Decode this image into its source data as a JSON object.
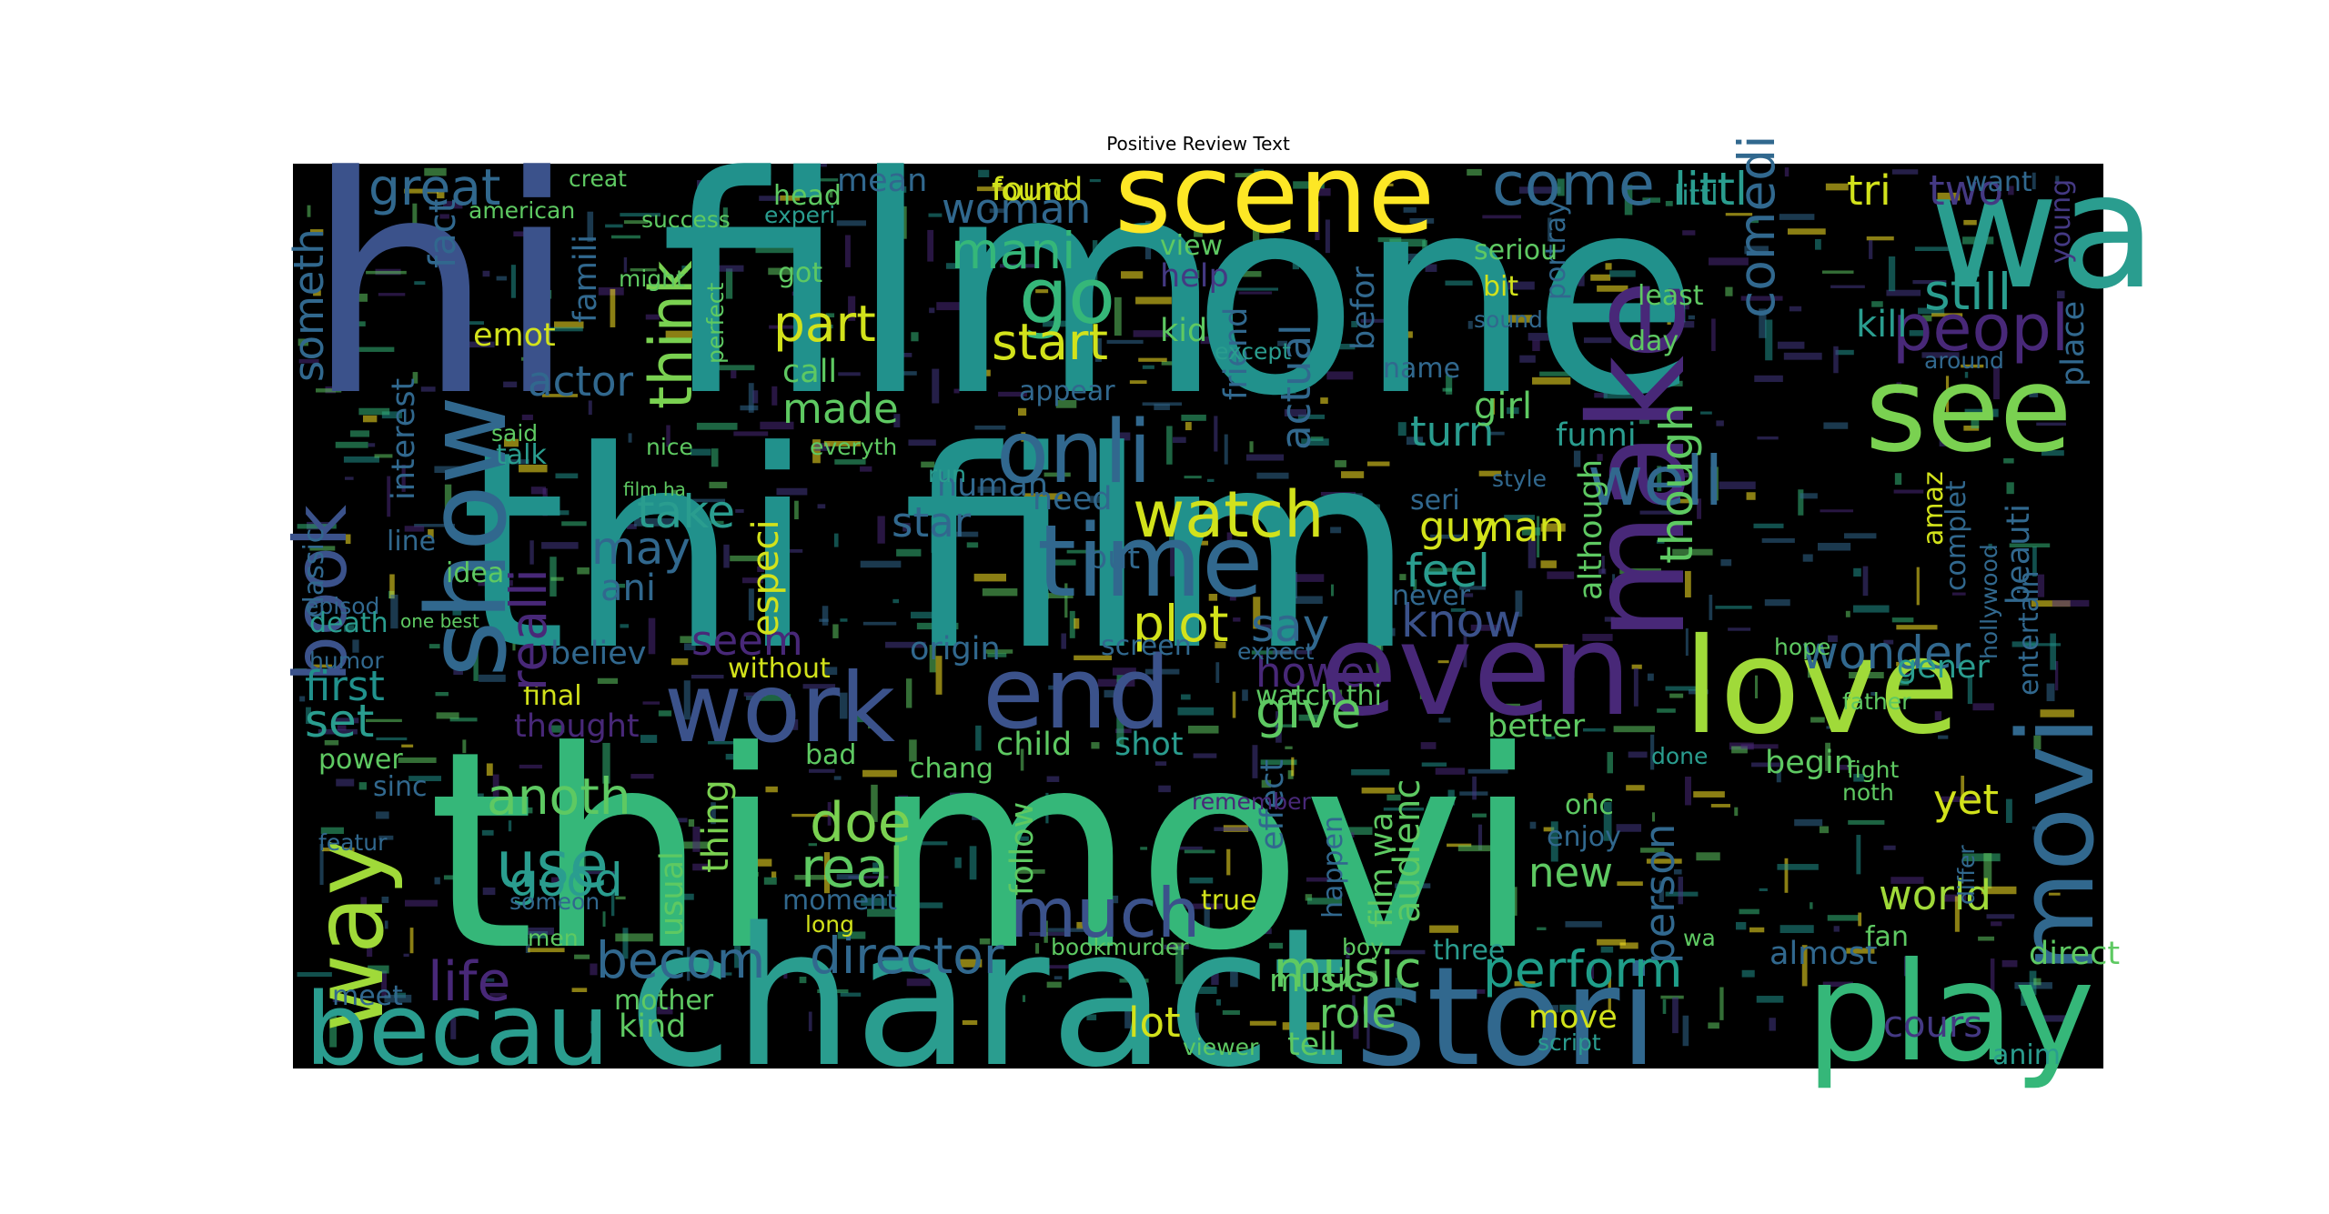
{
  "chart_data": {
    "type": "wordcloud",
    "title": "Positive Review Text",
    "background_color": "#000000",
    "colormap": "viridis",
    "words": [
      {
        "text": "thi film",
        "color": "#21918c"
      },
      {
        "text": "thi movi",
        "color": "#35b779"
      },
      {
        "text": "hi",
        "color": "#3b528b"
      },
      {
        "text": "film",
        "color": "#21918c"
      },
      {
        "text": "one",
        "color": "#21918c"
      },
      {
        "text": "charact",
        "color": "#2a9d8f"
      },
      {
        "text": "scene",
        "color": "#fde725"
      },
      {
        "text": "wa",
        "color": "#2a9d8f"
      },
      {
        "text": "see",
        "color": "#7ad151"
      },
      {
        "text": "even",
        "color": "#482878"
      },
      {
        "text": "love",
        "color": "#a0da39"
      },
      {
        "text": "play",
        "color": "#35b779"
      },
      {
        "text": "stori",
        "color": "#31688e"
      },
      {
        "text": "work",
        "color": "#3b528b"
      },
      {
        "text": "end",
        "color": "#3b528b"
      },
      {
        "text": "way",
        "color": "#a0da39"
      },
      {
        "text": "show",
        "color": "#31688e"
      },
      {
        "text": "becau",
        "color": "#2a9d8f"
      },
      {
        "text": "movi",
        "color": "#31688e"
      },
      {
        "text": "make",
        "color": "#482878"
      },
      {
        "text": "time",
        "color": "#31688e"
      },
      {
        "text": "watch",
        "color": "#d2e21b"
      },
      {
        "text": "onli",
        "color": "#31688e"
      },
      {
        "text": "peopl",
        "color": "#482878"
      },
      {
        "text": "come",
        "color": "#31688e"
      },
      {
        "text": "go",
        "color": "#35b779"
      },
      {
        "text": "great",
        "color": "#31688e"
      },
      {
        "text": "book",
        "color": "#3b528b"
      },
      {
        "text": "much",
        "color": "#3b528b"
      },
      {
        "text": "music",
        "color": "#5ec962"
      },
      {
        "text": "perform",
        "color": "#1f9e89"
      },
      {
        "text": "director",
        "color": "#31688e"
      },
      {
        "text": "becom",
        "color": "#31688e"
      },
      {
        "text": "anoth",
        "color": "#5ec962"
      },
      {
        "text": "use",
        "color": "#2a9d8f"
      },
      {
        "text": "good",
        "color": "#2a9d8f"
      },
      {
        "text": "real",
        "color": "#5ec962"
      },
      {
        "text": "doe",
        "color": "#7ad151"
      },
      {
        "text": "life",
        "color": "#482878"
      },
      {
        "text": "set",
        "color": "#2a9d8f"
      },
      {
        "text": "first",
        "color": "#21918c"
      },
      {
        "text": "give",
        "color": "#5ec962"
      },
      {
        "text": "know",
        "color": "#3b528b"
      },
      {
        "text": "feel",
        "color": "#2a9d8f"
      },
      {
        "text": "plot",
        "color": "#d2e21b"
      },
      {
        "text": "say",
        "color": "#31688e"
      },
      {
        "text": "take",
        "color": "#2a9d8f"
      },
      {
        "text": "may",
        "color": "#31688e"
      },
      {
        "text": "part",
        "color": "#d2e21b"
      },
      {
        "text": "start",
        "color": "#d2e21b"
      },
      {
        "text": "made",
        "color": "#5ec962"
      },
      {
        "text": "actor",
        "color": "#31688e"
      },
      {
        "text": "think",
        "color": "#7ad151"
      },
      {
        "text": "still",
        "color": "#2a9d8f"
      },
      {
        "text": "two",
        "color": "#443983"
      },
      {
        "text": "littl",
        "color": "#2a9d8f"
      },
      {
        "text": "tri",
        "color": "#d2e21b"
      },
      {
        "text": "woman",
        "color": "#31688e"
      },
      {
        "text": "found",
        "color": "#d2e21b"
      },
      {
        "text": "mean",
        "color": "#31688e"
      },
      {
        "text": "well",
        "color": "#31688e"
      },
      {
        "text": "though",
        "color": "#5ec962"
      },
      {
        "text": "comedi",
        "color": "#31688e"
      },
      {
        "text": "kill",
        "color": "#2a9d8f"
      },
      {
        "text": "turn",
        "color": "#2a9d8f"
      },
      {
        "text": "girl",
        "color": "#5ec962"
      },
      {
        "text": "guy",
        "color": "#d2e21b"
      },
      {
        "text": "man",
        "color": "#d2e21b"
      },
      {
        "text": "wonder",
        "color": "#31688e"
      },
      {
        "text": "world",
        "color": "#a0da39"
      },
      {
        "text": "new",
        "color": "#5ec962"
      },
      {
        "text": "yet",
        "color": "#d2e21b"
      },
      {
        "text": "lot",
        "color": "#d2e21b"
      },
      {
        "text": "role",
        "color": "#5ec962"
      },
      {
        "text": "move",
        "color": "#d2e21b"
      },
      {
        "text": "cours",
        "color": "#443983"
      },
      {
        "text": "anim",
        "color": "#2a9d8f"
      },
      {
        "text": "almost",
        "color": "#31688e"
      },
      {
        "text": "direct",
        "color": "#5ec962"
      },
      {
        "text": "person",
        "color": "#31688e"
      },
      {
        "text": "enjoy",
        "color": "#31688e"
      },
      {
        "text": "origin",
        "color": "#31688e"
      },
      {
        "text": "child",
        "color": "#5ec962"
      },
      {
        "text": "believ",
        "color": "#31688e"
      },
      {
        "text": "thought",
        "color": "#482878"
      },
      {
        "text": "final",
        "color": "#d2e21b"
      },
      {
        "text": "power",
        "color": "#5ec962"
      },
      {
        "text": "sinc",
        "color": "#31688e"
      },
      {
        "text": "human",
        "color": "#31688e"
      },
      {
        "text": "appear",
        "color": "#31688e"
      },
      {
        "text": "need",
        "color": "#31688e"
      },
      {
        "text": "put",
        "color": "#31688e"
      },
      {
        "text": "seem",
        "color": "#482878"
      },
      {
        "text": "without",
        "color": "#d2e21b"
      },
      {
        "text": "especi",
        "color": "#d2e21b"
      },
      {
        "text": "help",
        "color": "#443983"
      },
      {
        "text": "kid",
        "color": "#5ec962"
      },
      {
        "text": "view",
        "color": "#5ec962"
      },
      {
        "text": "mani",
        "color": "#35b779"
      },
      {
        "text": "got",
        "color": "#5ec962"
      },
      {
        "text": "emot",
        "color": "#d2e21b"
      },
      {
        "text": "famili",
        "color": "#31688e"
      },
      {
        "text": "fact",
        "color": "#31688e"
      },
      {
        "text": "realli",
        "color": "#482878"
      },
      {
        "text": "interest",
        "color": "#31688e"
      },
      {
        "text": "someth",
        "color": "#31688e"
      },
      {
        "text": "classic",
        "color": "#31688e"
      },
      {
        "text": "episod",
        "color": "#31688e"
      },
      {
        "text": "death",
        "color": "#2a9d8f"
      },
      {
        "text": "humor",
        "color": "#31688e"
      },
      {
        "text": "featur",
        "color": "#31688e"
      },
      {
        "text": "someon",
        "color": "#31688e"
      },
      {
        "text": "men",
        "color": "#5ec962"
      },
      {
        "text": "meet",
        "color": "#31688e"
      },
      {
        "text": "kind",
        "color": "#5ec962"
      },
      {
        "text": "mother",
        "color": "#5ec962"
      },
      {
        "text": "tell",
        "color": "#5ec962"
      },
      {
        "text": "music",
        "color": "#5ec962"
      },
      {
        "text": "true",
        "color": "#d2e21b"
      },
      {
        "text": "long",
        "color": "#d2e21b"
      },
      {
        "text": "moment",
        "color": "#31688e"
      },
      {
        "text": "follow",
        "color": "#5ec962"
      },
      {
        "text": "thing",
        "color": "#7ad151"
      },
      {
        "text": "usual",
        "color": "#5ec962"
      },
      {
        "text": "bad",
        "color": "#5ec962"
      },
      {
        "text": "chang",
        "color": "#5ec962"
      },
      {
        "text": "shot",
        "color": "#2a9d8f"
      },
      {
        "text": "better",
        "color": "#5ec962"
      },
      {
        "text": "done",
        "color": "#2a9d8f"
      },
      {
        "text": "begin",
        "color": "#5ec962"
      },
      {
        "text": "hope",
        "color": "#5ec962"
      },
      {
        "text": "gener",
        "color": "#2a9d8f"
      },
      {
        "text": "father",
        "color": "#5ec962"
      },
      {
        "text": "fight",
        "color": "#5ec962"
      },
      {
        "text": "fan",
        "color": "#5ec962"
      },
      {
        "text": "littl",
        "color": "#2a9d8f"
      },
      {
        "text": "name",
        "color": "#31688e"
      },
      {
        "text": "friend",
        "color": "#31688e"
      },
      {
        "text": "actual",
        "color": "#31688e"
      },
      {
        "text": "befor",
        "color": "#31688e"
      },
      {
        "text": "portray",
        "color": "#31688e"
      },
      {
        "text": "bit",
        "color": "#d2e21b"
      },
      {
        "text": "sound",
        "color": "#31688e"
      },
      {
        "text": "seriou",
        "color": "#5ec962"
      },
      {
        "text": "style",
        "color": "#31688e"
      },
      {
        "text": "never",
        "color": "#31688e"
      },
      {
        "text": "seri",
        "color": "#31688e"
      },
      {
        "text": "funni",
        "color": "#2a9d8f"
      },
      {
        "text": "although",
        "color": "#5ec962"
      },
      {
        "text": "beauti",
        "color": "#31688e"
      },
      {
        "text": "entertain",
        "color": "#31688e"
      },
      {
        "text": "complet",
        "color": "#31688e"
      },
      {
        "text": "amaz",
        "color": "#d2e21b"
      },
      {
        "text": "day",
        "color": "#5ec962"
      },
      {
        "text": "least",
        "color": "#5ec962"
      },
      {
        "text": "want",
        "color": "#31688e"
      },
      {
        "text": "young",
        "color": "#443983"
      },
      {
        "text": "around",
        "color": "#31688e"
      },
      {
        "text": "place",
        "color": "#31688e"
      },
      {
        "text": "hollywood",
        "color": "#31688e"
      },
      {
        "text": "differ",
        "color": "#31688e"
      },
      {
        "text": "audienc",
        "color": "#5ec962"
      },
      {
        "text": "boy",
        "color": "#5ec962"
      },
      {
        "text": "happen",
        "color": "#31688e"
      },
      {
        "text": "effect",
        "color": "#31688e"
      },
      {
        "text": "howev",
        "color": "#482878"
      },
      {
        "text": "expect",
        "color": "#31688e"
      },
      {
        "text": "screen",
        "color": "#31688e"
      },
      {
        "text": "ani",
        "color": "#31688e"
      },
      {
        "text": "star",
        "color": "#31688e"
      },
      {
        "text": "call",
        "color": "#5ec962"
      },
      {
        "text": "said",
        "color": "#5ec962"
      },
      {
        "text": "talk",
        "color": "#2a9d8f"
      },
      {
        "text": "idea",
        "color": "#5ec962"
      },
      {
        "text": "line",
        "color": "#31688e"
      },
      {
        "text": "nice",
        "color": "#5ec962"
      },
      {
        "text": "everyth",
        "color": "#5ec962"
      },
      {
        "text": "run",
        "color": "#2a9d8f"
      },
      {
        "text": "book",
        "color": "#5ec962"
      },
      {
        "text": "murder",
        "color": "#5ec962"
      },
      {
        "text": "success",
        "color": "#5ec962"
      },
      {
        "text": "experi",
        "color": "#2a9d8f"
      },
      {
        "text": "american",
        "color": "#5ec962"
      },
      {
        "text": "creat",
        "color": "#5ec962"
      },
      {
        "text": "head",
        "color": "#5ec962"
      },
      {
        "text": "might",
        "color": "#5ec962"
      },
      {
        "text": "perfect",
        "color": "#5ec962"
      },
      {
        "text": "except",
        "color": "#2a9d8f"
      },
      {
        "text": "three",
        "color": "#2a9d8f"
      },
      {
        "text": "onc",
        "color": "#5ec962"
      },
      {
        "text": "noth",
        "color": "#5ec962"
      },
      {
        "text": "found",
        "color": "#d2e21b"
      },
      {
        "text": "film ha",
        "color": "#5ec962"
      },
      {
        "text": "one best",
        "color": "#5ec962"
      },
      {
        "text": "watch thi",
        "color": "#5ec962"
      },
      {
        "text": "film wa",
        "color": "#5ec962"
      },
      {
        "text": "wa",
        "color": "#5ec962"
      },
      {
        "text": "script",
        "color": "#2a9d8f"
      },
      {
        "text": "viewer",
        "color": "#5ec962"
      },
      {
        "text": "remember",
        "color": "#482878"
      }
    ]
  }
}
